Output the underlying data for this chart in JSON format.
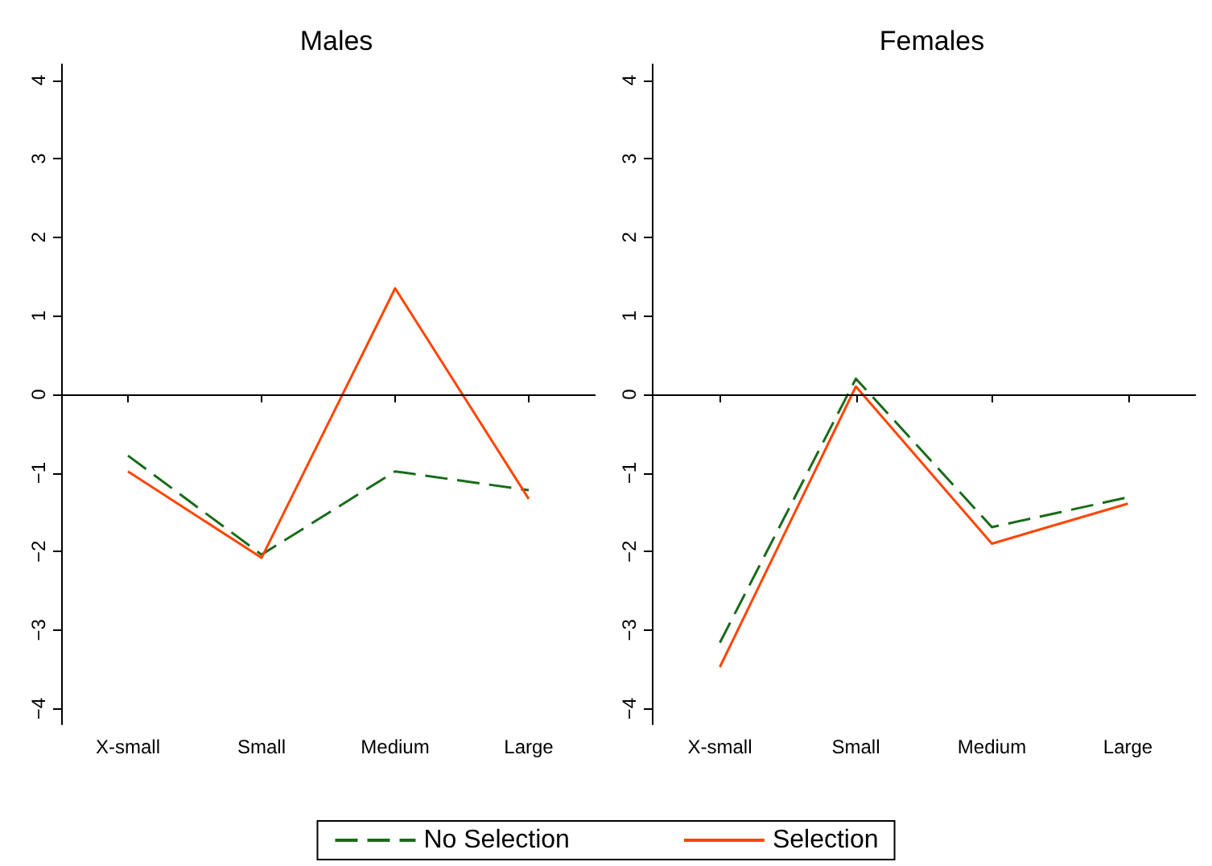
{
  "chart_data": [
    {
      "type": "line",
      "title": "Males",
      "categories": [
        "X-small",
        "Small",
        "Medium",
        "Large"
      ],
      "series": [
        {
          "name": "No Selection",
          "color": "#1a6b1a",
          "line_style": "dashed",
          "values": [
            -0.78,
            -2.04,
            -0.98,
            -1.22
          ]
        },
        {
          "name": "Selection",
          "color": "#ff4500",
          "line_style": "solid",
          "values": [
            -0.98,
            -2.08,
            1.35,
            -1.33
          ]
        }
      ],
      "ylim": [
        -4.2,
        4.2
      ],
      "yticks": [
        {
          "value": -4,
          "label": "−4"
        },
        {
          "value": -3,
          "label": "−3"
        },
        {
          "value": -2,
          "label": "−2"
        },
        {
          "value": -1,
          "label": "−1"
        },
        0,
        1,
        2,
        3,
        4
      ],
      "ref_lines": [
        {
          "axis": "y",
          "value": 0,
          "color": "#000000"
        }
      ],
      "grid": false,
      "marker": "none",
      "legend": "bottom"
    },
    {
      "type": "line",
      "title": "Females",
      "categories": [
        "X-small",
        "Small",
        "Medium",
        "Large"
      ],
      "series": [
        {
          "name": "No Selection",
          "color": "#1a6b1a",
          "line_style": "dashed",
          "values": [
            -3.16,
            0.2,
            -1.69,
            -1.31
          ]
        },
        {
          "name": "Selection",
          "color": "#ff4500",
          "line_style": "solid",
          "values": [
            -3.47,
            0.1,
            -1.9,
            -1.39
          ]
        }
      ],
      "ylim": [
        -4.2,
        4.2
      ],
      "yticks": [
        {
          "value": -4,
          "label": "−4"
        },
        {
          "value": -3,
          "label": "−3"
        },
        {
          "value": -2,
          "label": "−2"
        },
        {
          "value": -1,
          "label": "−1"
        },
        0,
        1,
        2,
        3,
        4
      ],
      "ref_lines": [
        {
          "axis": "y",
          "value": 0,
          "color": "#000000"
        }
      ],
      "grid": false,
      "marker": "none",
      "legend": false
    }
  ]
}
